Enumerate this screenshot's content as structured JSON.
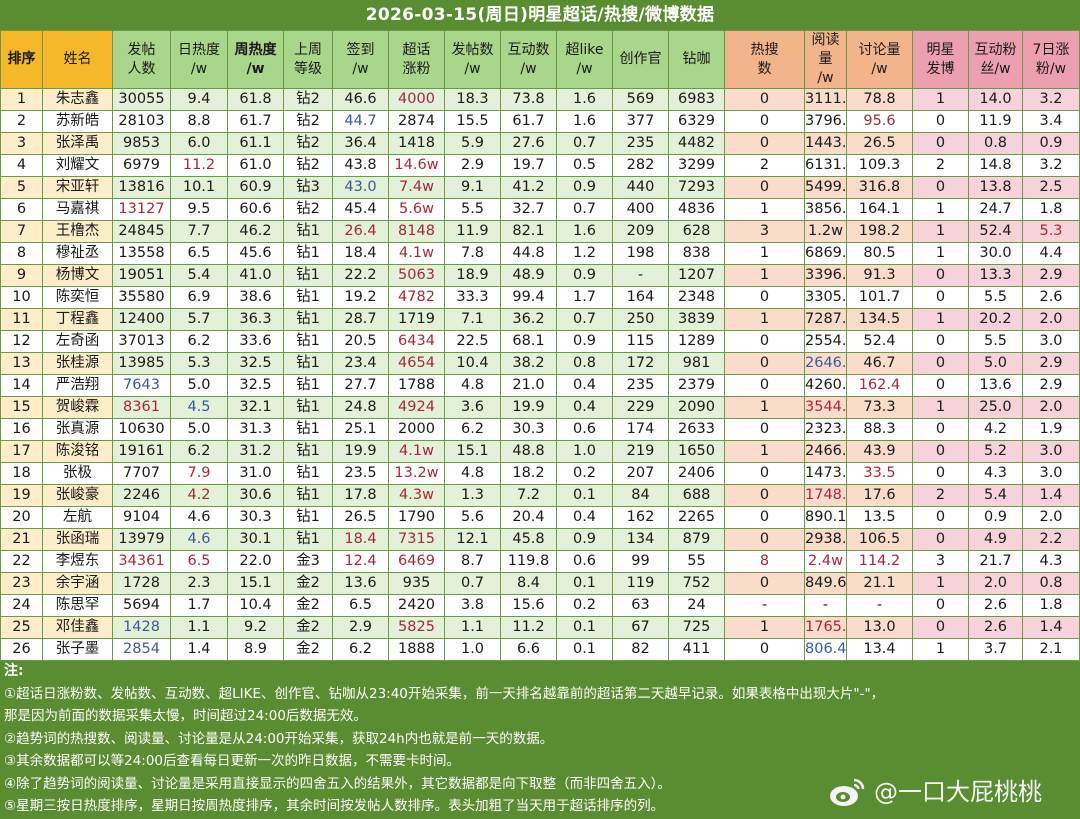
{
  "title": "2026-03-15(周日)明星超话/热搜/微博数据",
  "columns": [
    {
      "label": "排序",
      "group": "yellow",
      "bold": true
    },
    {
      "label": "姓名",
      "group": "yellow",
      "bold": false
    },
    {
      "label": "发帖\n人数",
      "group": "green",
      "bold": false
    },
    {
      "label": "日热度\n/w",
      "group": "green",
      "bold": false
    },
    {
      "label": "周热度\n/w",
      "group": "green",
      "bold": true
    },
    {
      "label": "上周\n等级",
      "group": "green",
      "bold": false
    },
    {
      "label": "签到\n/w",
      "group": "green",
      "bold": false
    },
    {
      "label": "超话\n涨粉",
      "group": "green",
      "bold": false
    },
    {
      "label": "发帖数\n/w",
      "group": "green",
      "bold": false
    },
    {
      "label": "互动数\n/w",
      "group": "green",
      "bold": false
    },
    {
      "label": "超like\n/w",
      "group": "green",
      "bold": false
    },
    {
      "label": "创作官",
      "group": "green",
      "bold": false
    },
    {
      "label": "钻咖",
      "group": "green",
      "bold": false
    },
    {
      "label": "热搜\n数",
      "group": "orange",
      "bold": false
    },
    {
      "label": "阅读量\n/w",
      "group": "orange",
      "bold": false
    },
    {
      "label": "讨论量\n/w",
      "group": "orange",
      "bold": false
    },
    {
      "label": "明星\n发博",
      "group": "pink",
      "bold": false
    },
    {
      "label": "互动粉\n丝/w",
      "group": "pink",
      "bold": false
    },
    {
      "label": "7日涨\n粉/w",
      "group": "pink",
      "bold": false
    }
  ],
  "rows": [
    [
      "1",
      "朱志鑫",
      "30055",
      "9.4",
      "61.8",
      "钻2",
      "46.6",
      "4000",
      "18.3",
      "73.8",
      "1.6",
      "569",
      "6983",
      "0",
      "3111.8",
      "78.8",
      "1",
      "14.0",
      "3.2"
    ],
    [
      "2",
      "苏新皓",
      "28103",
      "8.8",
      "61.7",
      "钻2",
      "44.7",
      "2874",
      "15.5",
      "61.7",
      "1.6",
      "377",
      "6329",
      "0",
      "3796.7",
      "95.6",
      "0",
      "11.9",
      "3.4"
    ],
    [
      "3",
      "张泽禹",
      "9853",
      "6.0",
      "61.1",
      "钻2",
      "36.4",
      "1418",
      "5.9",
      "27.6",
      "0.7",
      "235",
      "4482",
      "0",
      "1443.5",
      "26.5",
      "0",
      "0.8",
      "0.9"
    ],
    [
      "4",
      "刘耀文",
      "6979",
      "11.2",
      "61.0",
      "钻2",
      "43.8",
      "14.6w",
      "2.9",
      "19.7",
      "0.5",
      "282",
      "3299",
      "2",
      "6131.1",
      "109.3",
      "2",
      "14.8",
      "3.2"
    ],
    [
      "5",
      "宋亚轩",
      "13816",
      "10.1",
      "60.9",
      "钻3",
      "43.0",
      "7.4w",
      "9.1",
      "41.2",
      "0.9",
      "440",
      "7293",
      "0",
      "5499.9",
      "316.8",
      "0",
      "13.8",
      "2.5"
    ],
    [
      "6",
      "马嘉祺",
      "13127",
      "9.5",
      "60.6",
      "钻2",
      "45.4",
      "5.6w",
      "5.5",
      "32.7",
      "0.7",
      "400",
      "4836",
      "1",
      "3856.5",
      "164.1",
      "1",
      "24.7",
      "1.8"
    ],
    [
      "7",
      "王橹杰",
      "24845",
      "7.7",
      "46.2",
      "钻1",
      "26.4",
      "8148",
      "11.9",
      "82.1",
      "1.6",
      "209",
      "628",
      "3",
      "1.2w",
      "198.2",
      "1",
      "52.4",
      "5.3"
    ],
    [
      "8",
      "穆祉丞",
      "13558",
      "6.5",
      "45.6",
      "钻1",
      "18.4",
      "4.1w",
      "7.8",
      "44.8",
      "1.2",
      "198",
      "838",
      "1",
      "6869.9",
      "80.5",
      "1",
      "30.0",
      "4.4"
    ],
    [
      "9",
      "杨博文",
      "19051",
      "5.4",
      "41.0",
      "钻1",
      "22.2",
      "5063",
      "18.9",
      "48.9",
      "0.9",
      "-",
      "1207",
      "1",
      "3396.9",
      "91.3",
      "0",
      "13.3",
      "2.9"
    ],
    [
      "10",
      "陈奕恒",
      "35580",
      "6.9",
      "38.6",
      "钻1",
      "19.2",
      "4782",
      "33.3",
      "99.4",
      "1.7",
      "164",
      "2348",
      "0",
      "3305.2",
      "101.7",
      "0",
      "5.5",
      "2.6"
    ],
    [
      "11",
      "丁程鑫",
      "12400",
      "5.7",
      "36.3",
      "钻1",
      "28.7",
      "1719",
      "7.1",
      "36.2",
      "0.7",
      "250",
      "3839",
      "1",
      "7287.3",
      "134.5",
      "1",
      "20.2",
      "2.0"
    ],
    [
      "12",
      "左奇函",
      "37013",
      "6.2",
      "33.6",
      "钻1",
      "20.5",
      "6434",
      "22.5",
      "68.1",
      "0.9",
      "115",
      "1289",
      "0",
      "2554.2",
      "52.4",
      "0",
      "5.5",
      "3.0"
    ],
    [
      "13",
      "张桂源",
      "13985",
      "5.3",
      "32.5",
      "钻1",
      "23.4",
      "4654",
      "10.4",
      "38.2",
      "0.8",
      "172",
      "981",
      "0",
      "2646.8",
      "46.7",
      "0",
      "5.0",
      "2.9"
    ],
    [
      "14",
      "严浩翔",
      "7643",
      "5.0",
      "32.5",
      "钻1",
      "27.7",
      "1788",
      "4.8",
      "21.0",
      "0.4",
      "235",
      "2379",
      "0",
      "4260.2",
      "162.4",
      "0",
      "13.6",
      "2.9"
    ],
    [
      "15",
      "贺峻霖",
      "8361",
      "4.5",
      "32.1",
      "钻1",
      "24.8",
      "4924",
      "3.6",
      "19.9",
      "0.4",
      "229",
      "2090",
      "1",
      "3544.0",
      "73.3",
      "1",
      "25.0",
      "2.0"
    ],
    [
      "16",
      "张真源",
      "10630",
      "5.0",
      "31.3",
      "钻1",
      "25.1",
      "2000",
      "6.2",
      "30.3",
      "0.6",
      "174",
      "2633",
      "0",
      "2323.7",
      "88.3",
      "0",
      "4.2",
      "1.9"
    ],
    [
      "17",
      "陈浚铭",
      "19161",
      "6.2",
      "31.2",
      "钻1",
      "19.9",
      "4.1w",
      "15.1",
      "48.8",
      "1.0",
      "219",
      "1650",
      "1",
      "2466.2",
      "43.9",
      "0",
      "5.2",
      "3.0"
    ],
    [
      "18",
      "张极",
      "7707",
      "7.9",
      "31.0",
      "钻1",
      "23.5",
      "13.2w",
      "4.8",
      "18.2",
      "0.2",
      "207",
      "2406",
      "0",
      "1473.3",
      "33.5",
      "0",
      "4.3",
      "3.0"
    ],
    [
      "19",
      "张峻豪",
      "2246",
      "4.2",
      "30.6",
      "钻1",
      "17.8",
      "4.3w",
      "1.3",
      "7.2",
      "0.1",
      "84",
      "688",
      "0",
      "1748.6",
      "17.6",
      "2",
      "5.4",
      "1.4"
    ],
    [
      "20",
      "左航",
      "9104",
      "4.6",
      "30.3",
      "钻1",
      "26.5",
      "1790",
      "5.6",
      "20.4",
      "0.4",
      "162",
      "2265",
      "0",
      "890.1",
      "13.5",
      "0",
      "0.9",
      "2.0"
    ],
    [
      "21",
      "张函瑞",
      "13979",
      "4.6",
      "30.1",
      "钻1",
      "18.4",
      "7315",
      "12.1",
      "45.8",
      "0.9",
      "134",
      "879",
      "0",
      "2938.4",
      "106.5",
      "0",
      "4.9",
      "2.2"
    ],
    [
      "22",
      "李煜东",
      "34361",
      "6.5",
      "22.0",
      "金3",
      "12.4",
      "6469",
      "8.7",
      "119.8",
      "0.6",
      "99",
      "55",
      "8",
      "2.4w",
      "114.2",
      "3",
      "21.7",
      "4.3"
    ],
    [
      "23",
      "余宇涵",
      "1728",
      "2.3",
      "15.1",
      "金2",
      "13.6",
      "935",
      "0.7",
      "8.4",
      "0.1",
      "119",
      "752",
      "0",
      "849.6",
      "21.1",
      "1",
      "2.0",
      "0.8"
    ],
    [
      "24",
      "陈思罕",
      "5694",
      "1.7",
      "10.4",
      "金2",
      "6.5",
      "2420",
      "3.8",
      "15.6",
      "0.2",
      "63",
      "24",
      "-",
      "-",
      "-",
      "0",
      "2.6",
      "1.8"
    ],
    [
      "25",
      "邓佳鑫",
      "1428",
      "1.1",
      "9.2",
      "金2",
      "2.9",
      "5825",
      "1.1",
      "11.2",
      "0.1",
      "67",
      "725",
      "1",
      "1765.3",
      "13.0",
      "0",
      "2.6",
      "1.4"
    ],
    [
      "26",
      "张子墨",
      "2854",
      "1.4",
      "8.9",
      "金2",
      "6.2",
      "1888",
      "1.0",
      "6.6",
      "0.1",
      "82",
      "411",
      "0",
      "806.4",
      "13.4",
      "1",
      "3.7",
      "2.1"
    ]
  ],
  "highlights": {
    "red": [
      "0-7",
      "1-15",
      "3-3",
      "3-7",
      "4-7",
      "5-2",
      "5-7",
      "6-6",
      "6-7",
      "6-18",
      "7-7",
      "8-7",
      "9-7",
      "11-7",
      "12-7",
      "13-15",
      "14-2",
      "14-7",
      "14-14",
      "16-7",
      "17-3",
      "17-7",
      "17-15",
      "18-3",
      "18-7",
      "18-14",
      "20-6",
      "20-7",
      "21-2",
      "21-3",
      "21-6",
      "21-7",
      "21-13",
      "21-14",
      "21-15",
      "24-7",
      "24-14"
    ],
    "blue": [
      "1-6",
      "4-6",
      "12-14",
      "13-2",
      "14-3",
      "20-3",
      "24-2",
      "25-2",
      "25-14"
    ]
  },
  "colors": {
    "background": "#5a8c32",
    "header_yellow": "#f4b82a",
    "header_green": "#a8d68a",
    "header_orange": "#f2b48a",
    "header_pink": "#ec9fae",
    "text_red": "#a8283a",
    "text_blue": "#3a5aa0"
  },
  "notes": {
    "title": "注:",
    "lines": [
      "①超话日涨粉数、发帖数、互动数、超LIKE、创作官、钻咖从23:40开始采集，前一天排名越靠前的超话第二天越早记录。如果表格中出现大片\"-\"，",
      "那是因为前面的数据采集太慢，时间超过24:00后数据无效。",
      "②趋势词的热搜数、阅读量、讨论量是从24:00开始采集，获取24h内也就是前一天的数据。",
      "③其余数据都可以等24:00后查看每日更新一次的昨日数据，不需要卡时间。",
      "④除了趋势词的阅读量、讨论量是采用直接显示的四舍五入的结果外，其它数据都是向下取整（而非四舍五入）。",
      "⑤星期三按日热度排序，星期日按周热度排序，其余时间按发帖人数排序。表头加粗了当天用于超话排序的列。"
    ]
  },
  "watermark": {
    "icon": "weibo-icon",
    "text": "@一口大屁桃桃"
  }
}
